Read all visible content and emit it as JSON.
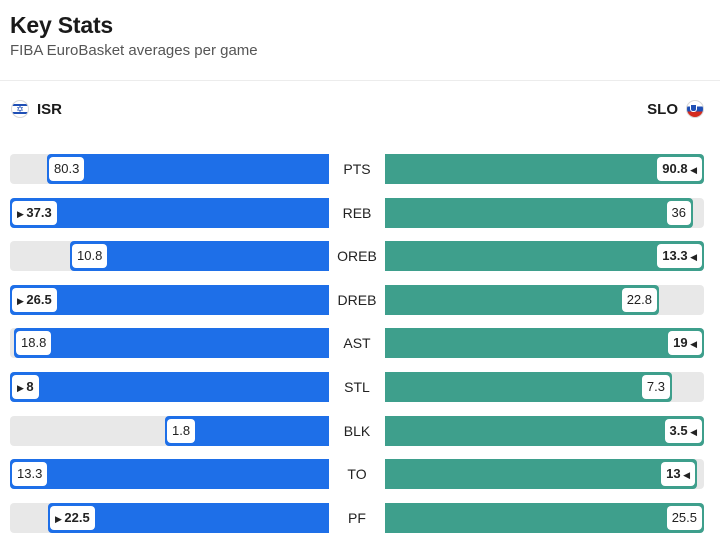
{
  "header": {
    "title": "Key Stats",
    "subtitle": "FIBA EuroBasket averages per game"
  },
  "teams": {
    "left": {
      "abbr": "ISR",
      "color": "#1e6fe8",
      "flag_icon": "israel-flag-icon"
    },
    "right": {
      "abbr": "SLO",
      "color": "#3e9f8c",
      "flag_icon": "slovenia-flag-icon"
    }
  },
  "stats": [
    {
      "label": "PTS",
      "isr": "80.3",
      "slo": "90.8",
      "isr_frac": 0.885,
      "slo_frac": 1.0,
      "leader": "slo"
    },
    {
      "label": "REB",
      "isr": "37.3",
      "slo": "36",
      "isr_frac": 1.0,
      "slo_frac": 0.965,
      "leader": "isr"
    },
    {
      "label": "OREB",
      "isr": "10.8",
      "slo": "13.3",
      "isr_frac": 0.812,
      "slo_frac": 1.0,
      "leader": "slo"
    },
    {
      "label": "DREB",
      "isr": "26.5",
      "slo": "22.8",
      "isr_frac": 1.0,
      "slo_frac": 0.86,
      "leader": "isr"
    },
    {
      "label": "AST",
      "isr": "18.8",
      "slo": "19",
      "isr_frac": 0.989,
      "slo_frac": 1.0,
      "leader": "slo"
    },
    {
      "label": "STL",
      "isr": "8",
      "slo": "7.3",
      "isr_frac": 1.0,
      "slo_frac": 0.9,
      "leader": "isr"
    },
    {
      "label": "BLK",
      "isr": "1.8",
      "slo": "3.5",
      "isr_frac": 0.514,
      "slo_frac": 1.0,
      "leader": "slo"
    },
    {
      "label": "TO",
      "isr": "13.3",
      "slo": "13",
      "isr_frac": 1.0,
      "slo_frac": 0.977,
      "leader": "slo"
    },
    {
      "label": "PF",
      "isr": "22.5",
      "slo": "25.5",
      "isr_frac": 0.882,
      "slo_frac": 1.0,
      "leader": "isr"
    }
  ]
}
